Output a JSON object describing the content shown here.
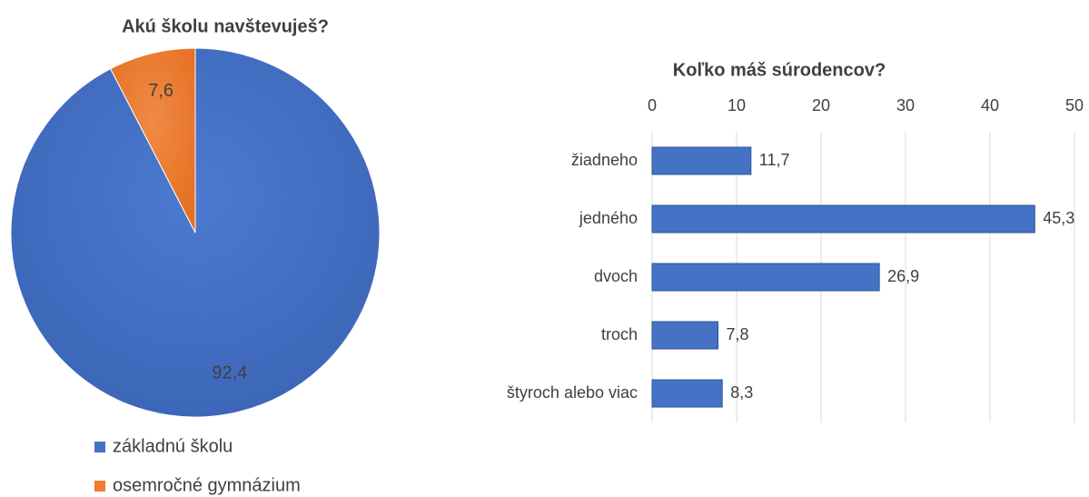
{
  "chart_data": [
    {
      "type": "pie",
      "title": "Akú školu navštevuješ?",
      "categories": [
        "základnú školu",
        "osemročné gymnázium"
      ],
      "values": [
        92.4,
        7.6
      ],
      "value_labels": [
        "92,4",
        "7,6"
      ],
      "colors": [
        "#4472c4",
        "#ed7d31"
      ],
      "legend": "bottom"
    },
    {
      "type": "hbar",
      "title": "Koľko máš súrodencov?",
      "categories": [
        "žiadneho",
        "jedného",
        "dvoch",
        "troch",
        "štyroch alebo viac"
      ],
      "values": [
        11.7,
        45.3,
        26.9,
        7.8,
        8.3
      ],
      "value_labels": [
        "11,7",
        "45,3",
        "26,9",
        "7,8",
        "8,3"
      ],
      "color": "#4472c4",
      "xlim": [
        0,
        50
      ],
      "xticks": [
        0,
        10,
        20,
        30,
        40,
        50
      ],
      "grid": true
    }
  ]
}
